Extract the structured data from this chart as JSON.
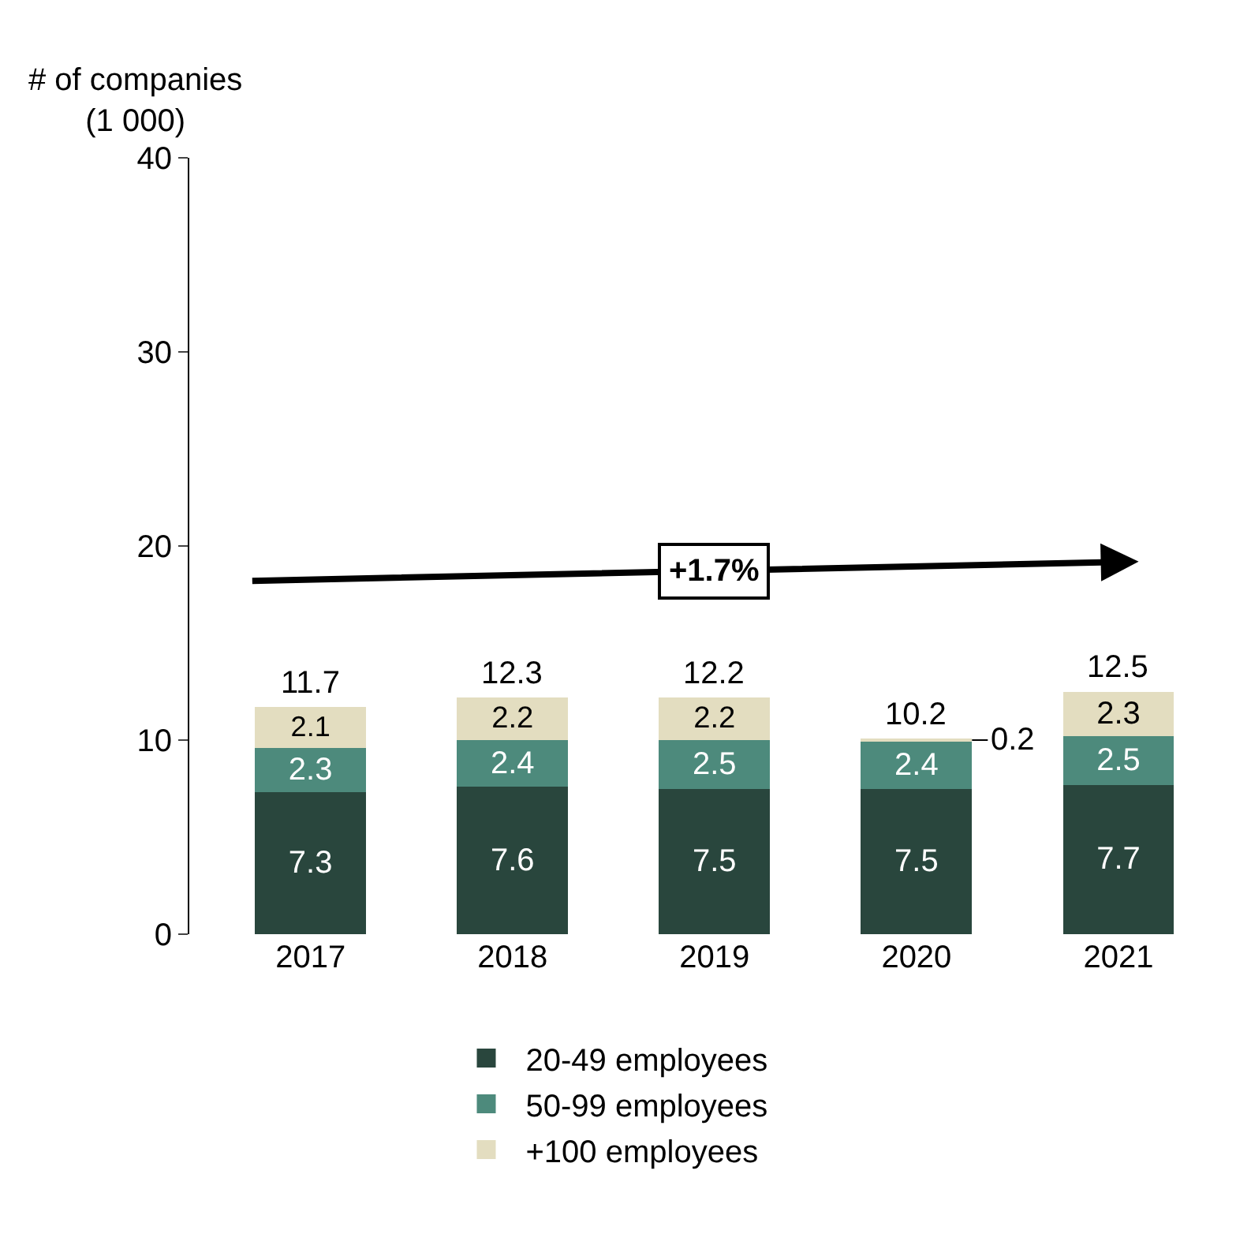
{
  "chart_data": {
    "type": "bar",
    "stacked": true,
    "ylabel": "# of companies\n(1 000)",
    "categories": [
      "2017",
      "2018",
      "2019",
      "2020",
      "2021"
    ],
    "series": [
      {
        "name": "20-49 employees",
        "color": "#29463d",
        "values": [
          7.3,
          7.6,
          7.5,
          7.5,
          7.7
        ]
      },
      {
        "name": "50-99 employees",
        "color": "#4d8a7c",
        "values": [
          2.3,
          2.4,
          2.5,
          2.4,
          2.5
        ]
      },
      {
        "name": "+100 employees",
        "color": "#e3ddc0",
        "values": [
          2.1,
          2.2,
          2.2,
          0.2,
          2.3
        ]
      }
    ],
    "totals": [
      "11.7",
      "12.3",
      "12.2",
      "10.2",
      "12.5"
    ],
    "annotations": [
      "+1.7%"
    ],
    "ylim": [
      0,
      40
    ],
    "yticks": [
      0,
      10,
      20,
      30,
      40
    ],
    "data_labels": true,
    "legend": "bottom"
  }
}
